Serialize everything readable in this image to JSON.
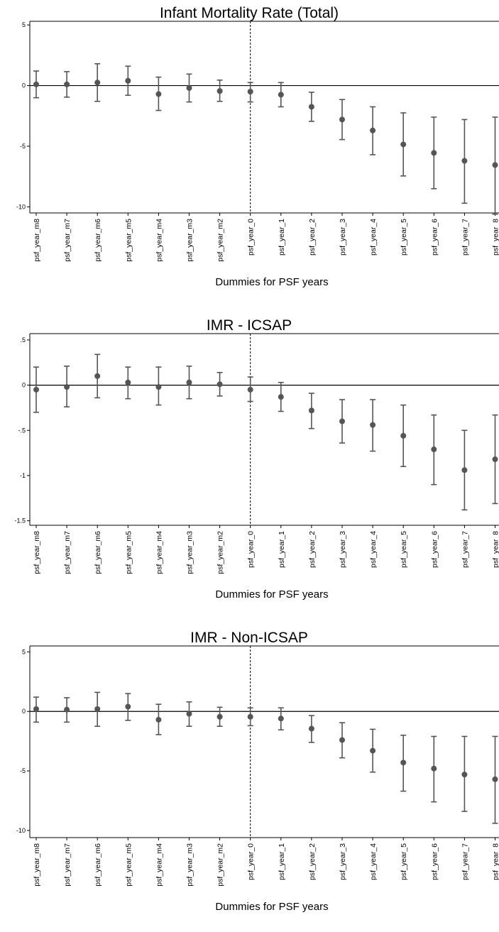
{
  "chart_data": [
    {
      "type": "scatter",
      "title": "Infant Mortality Rate (Total)",
      "xlabel": "Dummies for PSF years",
      "ylabel": "",
      "categories": [
        "psf_year_m8",
        "psf_year_m7",
        "psf_year_m6",
        "psf_year_m5",
        "psf_year_m4",
        "psf_year_m3",
        "psf_year_m2",
        "psf_year_0",
        "psf_year_1",
        "psf_year_2",
        "psf_year_3",
        "psf_year_4",
        "psf_year_5",
        "psf_year_6",
        "psf_year_7",
        "psf_year_8"
      ],
      "estimate": [
        0.1,
        0.1,
        0.25,
        0.4,
        -0.7,
        -0.2,
        -0.45,
        -0.5,
        -0.75,
        -1.75,
        -2.8,
        -3.7,
        -4.85,
        -5.55,
        -6.2,
        -6.55
      ],
      "ci_low": [
        -1.0,
        -0.95,
        -1.3,
        -0.8,
        -2.05,
        -1.35,
        -1.3,
        -1.35,
        -1.75,
        -2.95,
        -4.45,
        -5.7,
        -7.45,
        -8.5,
        -9.7,
        -10.6
      ],
      "ci_high": [
        1.2,
        1.15,
        1.8,
        1.6,
        0.7,
        0.95,
        0.45,
        0.25,
        0.25,
        -0.55,
        -1.15,
        -1.75,
        -2.25,
        -2.6,
        -2.8,
        -2.6
      ],
      "yticks": [
        5,
        0,
        -5,
        -10
      ],
      "ytick_labels": [
        "5",
        "0",
        "-5",
        "-10"
      ],
      "ylim": [
        -10.5,
        5.3
      ],
      "reference_line_y": 0,
      "reference_line_category": "psf_year_0",
      "grid": false,
      "legend": "none"
    },
    {
      "type": "scatter",
      "title": "IMR - ICSAP",
      "xlabel": "Dummies for PSF years",
      "ylabel": "",
      "categories": [
        "psf_year_m8",
        "psf_year_m7",
        "psf_year_m6",
        "psf_year_m5",
        "psf_year_m4",
        "psf_year_m3",
        "psf_year_m2",
        "psf_year_0",
        "psf_year_1",
        "psf_year_2",
        "psf_year_3",
        "psf_year_4",
        "psf_year_5",
        "psf_year_6",
        "psf_year_7",
        "psf_year_8"
      ],
      "estimate": [
        -0.05,
        -0.02,
        0.1,
        0.03,
        -0.02,
        0.03,
        0.01,
        -0.05,
        -0.13,
        -0.28,
        -0.4,
        -0.44,
        -0.56,
        -0.71,
        -0.94,
        -0.82
      ],
      "ci_low": [
        -0.3,
        -0.24,
        -0.14,
        -0.15,
        -0.22,
        -0.15,
        -0.12,
        -0.18,
        -0.29,
        -0.48,
        -0.64,
        -0.73,
        -0.9,
        -1.1,
        -1.38,
        -1.31
      ],
      "ci_high": [
        0.2,
        0.21,
        0.34,
        0.2,
        0.2,
        0.21,
        0.14,
        0.09,
        0.03,
        -0.09,
        -0.16,
        -0.16,
        -0.22,
        -0.33,
        -0.5,
        -0.33
      ],
      "yticks": [
        0.5,
        0,
        -0.5,
        -1,
        -1.5
      ],
      "ytick_labels": [
        ".5",
        "0",
        "-.5",
        "-1",
        "-1.5"
      ],
      "ylim": [
        -1.55,
        0.57
      ],
      "reference_line_y": 0,
      "reference_line_category": "psf_year_0",
      "grid": false,
      "legend": "none"
    },
    {
      "type": "scatter",
      "title": "IMR - Non-ICSAP",
      "xlabel": "Dummies for PSF years",
      "ylabel": "",
      "categories": [
        "psf_year_m8",
        "psf_year_m7",
        "psf_year_m6",
        "psf_year_m5",
        "psf_year_m4",
        "psf_year_m3",
        "psf_year_m2",
        "psf_year_0",
        "psf_year_1",
        "psf_year_2",
        "psf_year_3",
        "psf_year_4",
        "psf_year_5",
        "psf_year_6",
        "psf_year_7",
        "psf_year_8"
      ],
      "estimate": [
        0.2,
        0.15,
        0.2,
        0.4,
        -0.7,
        -0.2,
        -0.45,
        -0.45,
        -0.6,
        -1.45,
        -2.4,
        -3.3,
        -4.3,
        -4.8,
        -5.3,
        -5.7
      ],
      "ci_low": [
        -0.9,
        -0.9,
        -1.25,
        -0.75,
        -1.95,
        -1.25,
        -1.25,
        -1.2,
        -1.55,
        -2.6,
        -3.9,
        -5.1,
        -6.7,
        -7.6,
        -8.4,
        -9.4
      ],
      "ci_high": [
        1.2,
        1.15,
        1.6,
        1.5,
        0.6,
        0.8,
        0.35,
        0.3,
        0.3,
        -0.35,
        -0.95,
        -1.5,
        -2.0,
        -2.1,
        -2.1,
        -2.1
      ],
      "yticks": [
        5,
        0,
        -5,
        -10
      ],
      "ytick_labels": [
        "5",
        "0",
        "-5",
        "-10"
      ],
      "ylim": [
        -10.6,
        5.5
      ],
      "reference_line_y": 0,
      "reference_line_category": "psf_year_0",
      "grid": false,
      "legend": "none"
    }
  ]
}
